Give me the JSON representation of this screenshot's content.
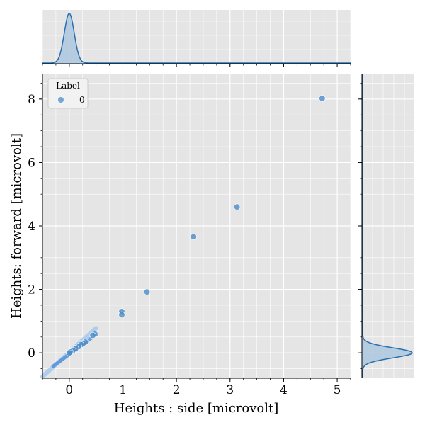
{
  "chart_data": {
    "type": "scatter",
    "xlabel": "Heights : side [microvolt]",
    "ylabel": "Heights: forward [microvolt]",
    "xlim": [
      -0.5,
      5.25
    ],
    "ylim": [
      -0.8,
      8.8
    ],
    "xticks": [
      "0",
      "1",
      "2",
      "3",
      "4",
      "5"
    ],
    "yticks": [
      "0",
      "2",
      "4",
      "6",
      "8"
    ],
    "grid": true,
    "legend": {
      "title": "Label",
      "placement": "top-left",
      "entries": [
        "0"
      ]
    },
    "series": [
      {
        "name": "0",
        "color": "#4c8cc8",
        "points": [
          [
            4.72,
            8.02
          ],
          [
            3.13,
            4.6
          ],
          [
            2.32,
            3.66
          ],
          [
            1.45,
            1.92
          ],
          [
            0.98,
            1.3
          ],
          [
            0.98,
            1.2
          ],
          [
            0.48,
            0.59
          ],
          [
            0.44,
            0.55
          ],
          [
            0.3,
            0.34
          ],
          [
            0.26,
            0.3
          ],
          [
            0.22,
            0.26
          ],
          [
            0.18,
            0.2
          ],
          [
            0.12,
            0.14
          ],
          [
            0.07,
            0.08
          ],
          [
            0.02,
            0.03
          ],
          [
            0.0,
            0.0
          ]
        ],
        "dense_band": {
          "from": [
            -0.5,
            -0.75
          ],
          "to": [
            0.5,
            0.78
          ]
        }
      }
    ],
    "marginal_x": {
      "type": "kde",
      "peak_at": 0.0,
      "spread": 0.06
    },
    "marginal_y": {
      "type": "kde",
      "peak_at": 0.0,
      "spread": 0.1
    }
  }
}
